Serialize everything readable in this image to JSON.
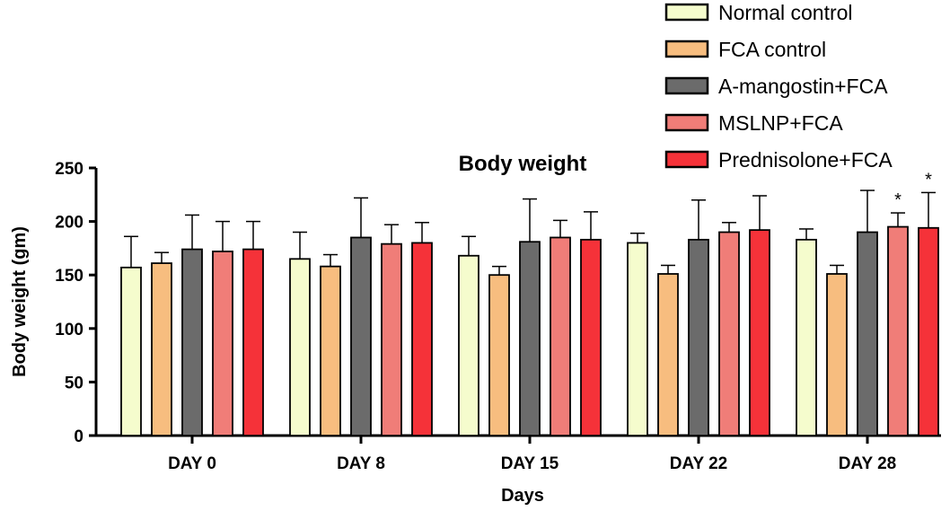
{
  "chart_data": {
    "type": "bar",
    "title": "Body weight",
    "xlabel": "Days",
    "ylabel": "Body weight (gm)",
    "ylim": [
      0,
      250
    ],
    "yticks": [
      0,
      50,
      100,
      150,
      200,
      250
    ],
    "categories": [
      "DAY 0",
      "DAY 8",
      "DAY 15",
      "DAY 22",
      "DAY 28"
    ],
    "legend_position": "top-right",
    "series": [
      {
        "name": "Normal control",
        "color": "#f5fccd",
        "values": [
          157,
          165,
          168,
          180,
          183
        ],
        "errors": [
          29,
          25,
          18,
          9,
          10
        ]
      },
      {
        "name": "FCA control",
        "color": "#f7bd7f",
        "values": [
          161,
          158,
          150,
          151,
          151
        ],
        "errors": [
          10,
          11,
          8,
          8,
          8
        ]
      },
      {
        "name": "A-mangostin+FCA",
        "color": "#6b6b6b",
        "values": [
          174,
          185,
          181,
          183,
          190
        ],
        "errors": [
          32,
          37,
          40,
          37,
          39
        ]
      },
      {
        "name": "MSLNP+FCA",
        "color": "#f07d78",
        "values": [
          172,
          179,
          185,
          190,
          195
        ],
        "errors": [
          28,
          18,
          16,
          9,
          13
        ]
      },
      {
        "name": "Prednisolone+FCA",
        "color": "#f53239",
        "values": [
          174,
          180,
          183,
          192,
          194
        ],
        "errors": [
          26,
          19,
          26,
          32,
          33
        ]
      }
    ],
    "annotations": [
      {
        "category": "DAY 28",
        "series": "MSLNP+FCA",
        "text": "*"
      },
      {
        "category": "DAY 28",
        "series": "Prednisolone+FCA",
        "text": "*"
      }
    ]
  }
}
